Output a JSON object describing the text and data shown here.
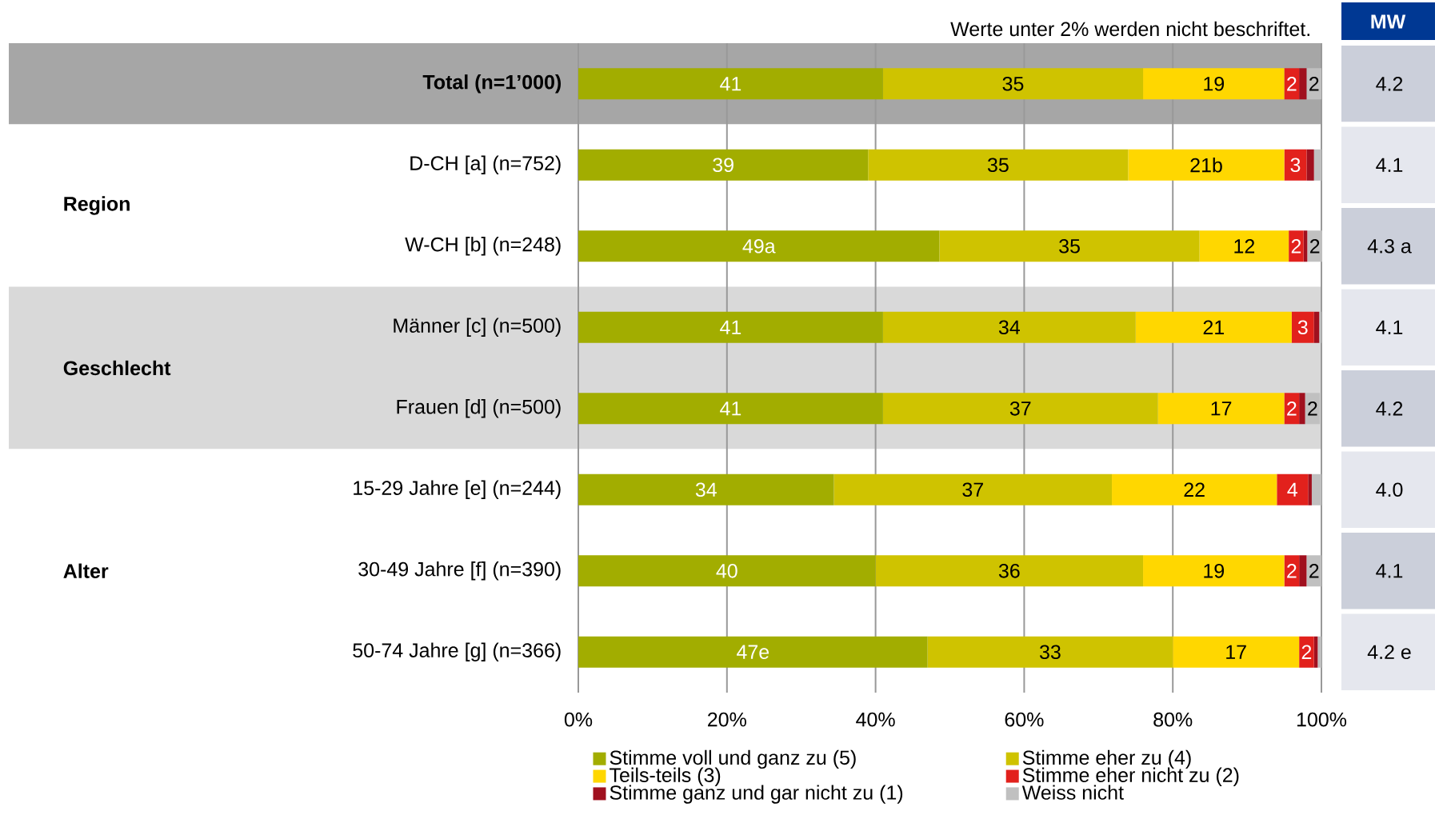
{
  "chart_data": {
    "type": "bar",
    "orientation": "horizontal",
    "stacked": true,
    "categories": [
      "**Total (n=1’000)**",
      "D-CH [a] (n=752)",
      "W-CH [b] (n=248)",
      "Männer [c] (n=500)",
      "Frauen [d] (n=500)",
      "15-29 Jahre [e] (n=244)",
      "30-49 Jahre [f] (n=390)",
      "50-74 Jahre [g] (n=366)"
    ],
    "series": [
      {
        "name": "Stimme voll und ganz zu (5)",
        "color": "#a2ad00",
        "values": [
          41,
          39,
          48.6,
          41,
          41,
          34.4,
          40,
          47
        ],
        "value_labels": [
          "41",
          "39",
          "49a",
          "41",
          "41",
          "34",
          "40",
          "47e"
        ]
      },
      {
        "name": "Stimme eher zu (4)",
        "color": "#cfc300",
        "values": [
          35,
          35,
          35,
          34,
          37,
          37.4,
          36,
          33
        ],
        "value_labels": [
          "35",
          "35",
          "35",
          "34",
          "37",
          "37",
          "36",
          "33"
        ]
      },
      {
        "name": "Teils-teils (3)",
        "color": "#ffd700",
        "values": [
          19,
          21,
          12,
          21,
          17,
          22.2,
          19,
          17
        ],
        "value_labels": [
          "19",
          "21b",
          "12",
          "21",
          "17",
          "22",
          "19",
          "17"
        ]
      },
      {
        "name": "Stimme eher nicht zu (2)",
        "color": "#e2211c",
        "values": [
          2,
          3,
          2,
          3,
          2,
          4.2,
          2,
          2
        ],
        "value_labels": [
          "2",
          "3",
          "2",
          "3",
          "2",
          "4",
          "2",
          "2"
        ]
      },
      {
        "name": "Stimme ganz und gar nicht zu (1)",
        "color": "#a0101e",
        "values": [
          1,
          1,
          0.5,
          0.7,
          0.8,
          0.5,
          1,
          0.5
        ],
        "value_labels": [
          null,
          null,
          null,
          null,
          null,
          null,
          null,
          null
        ]
      },
      {
        "name": "Weiss nicht",
        "color": "#c0c0c0",
        "values": [
          2,
          1,
          2,
          0.3,
          2,
          1.3,
          2,
          0.5
        ],
        "value_labels": [
          "2",
          null,
          "2",
          null,
          "2",
          null,
          "2",
          null
        ]
      }
    ],
    "xlim": [
      0,
      100
    ],
    "xticks": [
      {
        "value": 0,
        "label": "0%"
      },
      {
        "value": 20,
        "label": "20%"
      },
      {
        "value": 40,
        "label": "40%"
      },
      {
        "value": 60,
        "label": "60%"
      },
      {
        "value": 80,
        "label": "80%"
      },
      {
        "value": 100,
        "label": "100%"
      }
    ],
    "grid": "x",
    "legend": "bottom",
    "bands": [
      {
        "axis": "y",
        "from": "**Total (n=1’000)**",
        "to": "**Total (n=1’000)**",
        "color": "#a6a6a6"
      },
      {
        "axis": "y",
        "from": "D-CH [a] (n=752)",
        "to": "W-CH [b] (n=248)",
        "label": "Region",
        "color": "#ffffff"
      },
      {
        "axis": "y",
        "from": "Männer [c] (n=500)",
        "to": "Frauen [d] (n=500)",
        "label": "Geschlecht",
        "color": "#d9d9d9"
      },
      {
        "axis": "y",
        "from": "15-29 Jahre [e] (n=244)",
        "to": "50-74 Jahre [g] (n=366)",
        "label": "Alter",
        "color": "#ffffff"
      }
    ],
    "annotations": [
      "Werte unter 2% werden nicht beschriftet.",
      "MW",
      "4.2",
      "4.1",
      "4.3 a",
      "4.1",
      "4.2",
      "4.0",
      "4.1",
      "4.2 e"
    ]
  }
}
